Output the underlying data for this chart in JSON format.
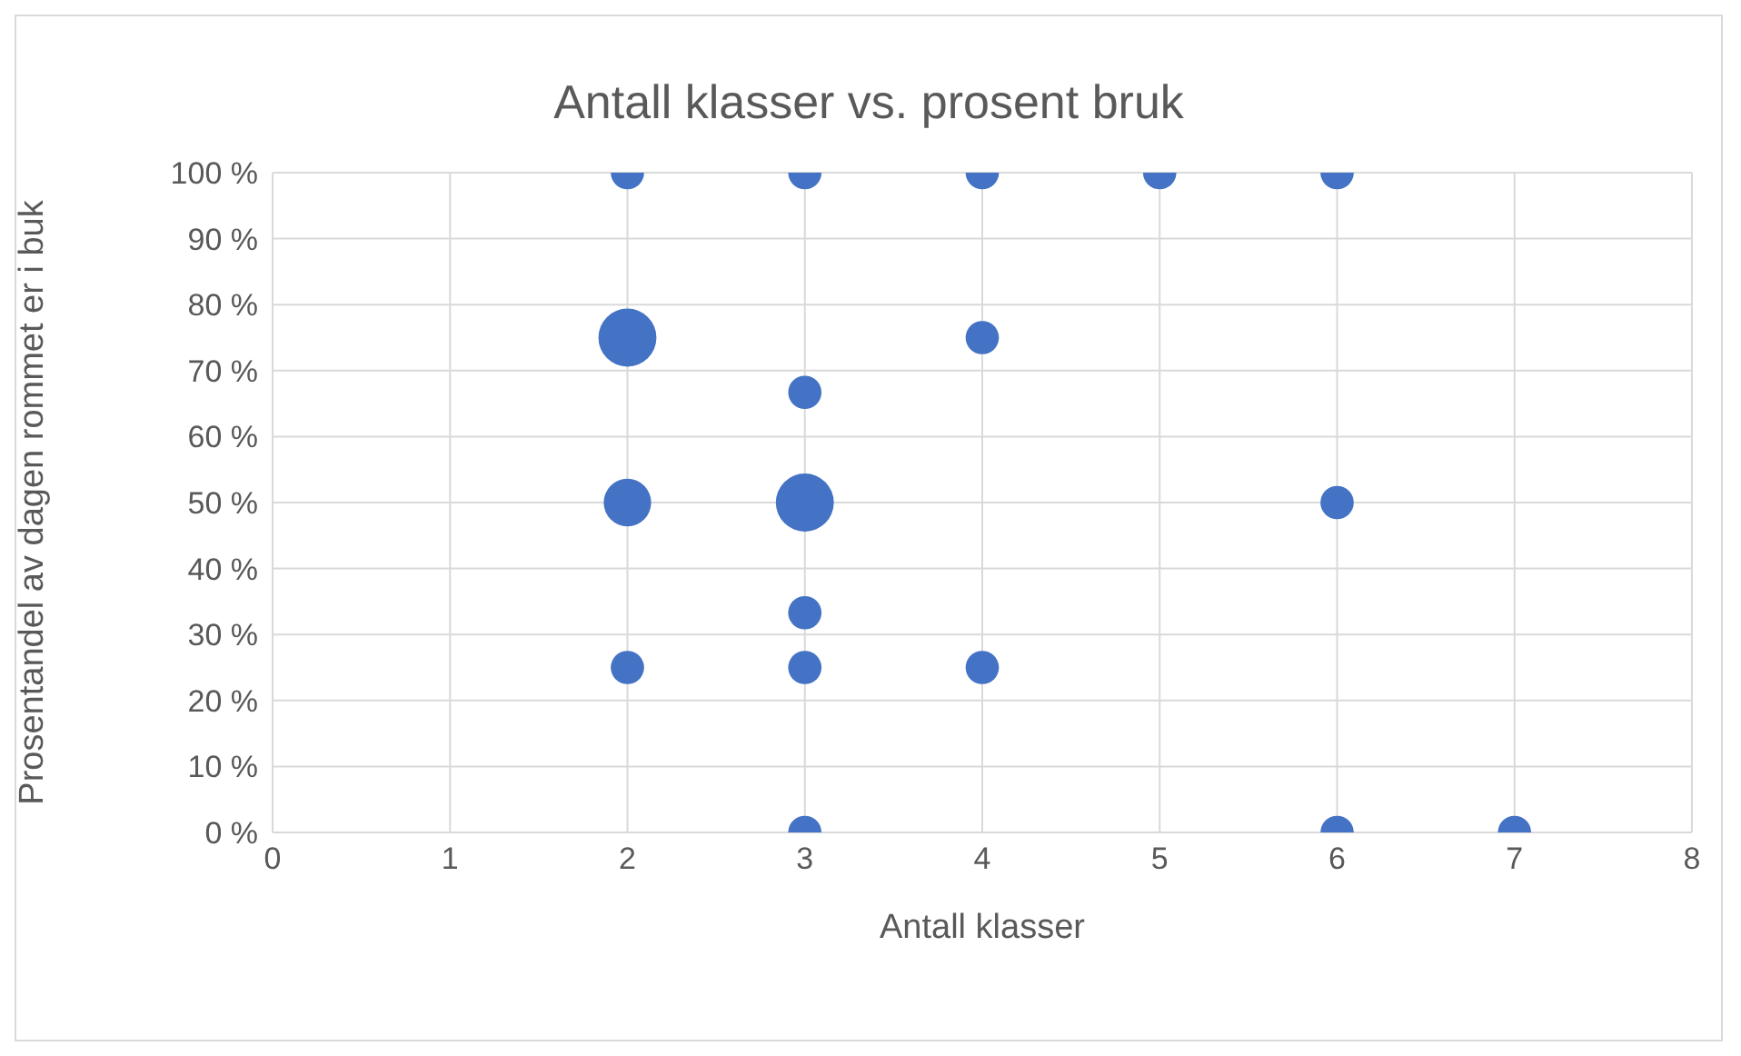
{
  "chart_data": {
    "type": "bubble",
    "title": "Antall klasser vs. prosent bruk",
    "xlabel": "Antall klasser",
    "ylabel": "Prosentandel av dagen rommet er i buk",
    "series": [
      {
        "color": "#4472c4",
        "x": [
          2,
          3,
          4,
          5,
          6,
          2,
          4,
          3,
          2,
          3,
          6,
          3,
          2,
          3,
          4,
          3,
          6,
          7
        ],
        "values": [
          100,
          100,
          100,
          100,
          100,
          75,
          75,
          66.7,
          50,
          50,
          50,
          33.3,
          25,
          25,
          25,
          0,
          0,
          0
        ],
        "sizes": [
          0.33,
          0.33,
          0.33,
          0.33,
          0.33,
          1,
          0.33,
          0.33,
          0.67,
          1,
          0.33,
          0.33,
          0.33,
          0.33,
          0.33,
          0.33,
          0.33,
          0.33
        ]
      }
    ],
    "xlim": [
      0,
      8
    ],
    "xticks": [
      0,
      1,
      2,
      3,
      4,
      5,
      6,
      7,
      8
    ],
    "ylim": [
      0,
      100
    ],
    "yticks": [
      {
        "value": 0,
        "label": "0 %"
      },
      {
        "value": 10,
        "label": "10 %"
      },
      {
        "value": 20,
        "label": "20 %"
      },
      {
        "value": 30,
        "label": "30 %"
      },
      {
        "value": 40,
        "label": "40 %"
      },
      {
        "value": 50,
        "label": "50 %"
      },
      {
        "value": 60,
        "label": "60 %"
      },
      {
        "value": 70,
        "label": "70 %"
      },
      {
        "value": 80,
        "label": "80 %"
      },
      {
        "value": 90,
        "label": "90 %"
      },
      {
        "value": 100,
        "label": "100 %"
      }
    ],
    "grid": true,
    "legend": false
  }
}
